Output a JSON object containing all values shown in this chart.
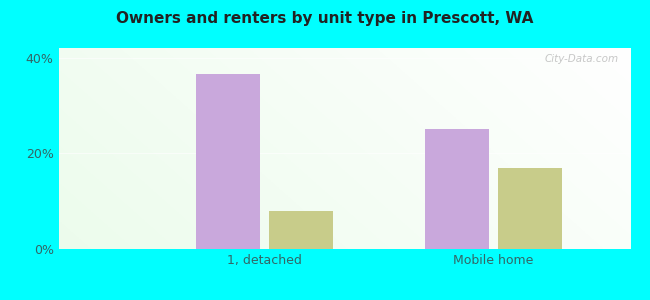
{
  "title": "Owners and renters by unit type in Prescott, WA",
  "categories": [
    "1, detached",
    "Mobile home"
  ],
  "owner_values": [
    36.5,
    25.0
  ],
  "renter_values": [
    8.0,
    17.0
  ],
  "owner_color": "#c9a8dc",
  "renter_color": "#c8cc8a",
  "ylim": [
    0,
    42
  ],
  "yticks": [
    0,
    20,
    40
  ],
  "ytick_labels": [
    "0%",
    "20%",
    "40%"
  ],
  "background_color": "#00ffff",
  "bar_width": 0.28,
  "watermark": "City-Data.com",
  "tick_color": "#336666",
  "title_color": "#222222"
}
